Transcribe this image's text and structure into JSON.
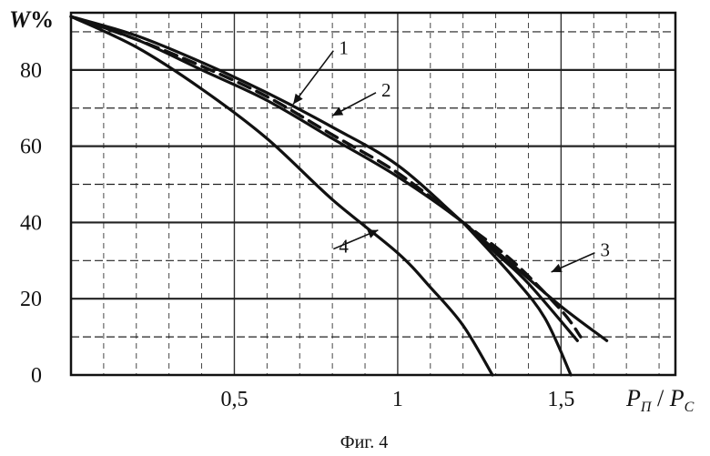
{
  "chart_data": {
    "type": "line",
    "caption": "Фиг. 4",
    "ylabel_main": "W",
    "ylabel_unit": "%",
    "xlabel_p1": "P",
    "xlabel_sub1": "П",
    "xlabel_sep": " / ",
    "xlabel_p2": "P",
    "xlabel_sub2": "С",
    "xlim": [
      0,
      1.85
    ],
    "ylim": [
      0,
      95
    ],
    "grid": true,
    "x_ticks": [
      {
        "value": 0.5,
        "label": "0,5"
      },
      {
        "value": 1.0,
        "label": "1"
      },
      {
        "value": 1.5,
        "label": "1,5"
      }
    ],
    "y_ticks": [
      {
        "value": 0,
        "label": "0"
      },
      {
        "value": 20,
        "label": "20"
      },
      {
        "value": 40,
        "label": "40"
      },
      {
        "value": 60,
        "label": "60"
      },
      {
        "value": 80,
        "label": "80"
      }
    ],
    "series": [
      {
        "name": "1",
        "style": "solid",
        "points": [
          [
            0,
            94
          ],
          [
            0.2,
            89
          ],
          [
            0.4,
            82
          ],
          [
            0.6,
            74
          ],
          [
            0.8,
            65
          ],
          [
            1.0,
            55
          ],
          [
            1.2,
            40
          ],
          [
            1.35,
            29
          ],
          [
            1.5,
            18
          ],
          [
            1.64,
            9
          ]
        ],
        "label_at": {
          "x": 0.82,
          "y": 86
        },
        "arrow_to": {
          "x": 0.68,
          "y": 71
        }
      },
      {
        "name": "2",
        "style": "solid",
        "points": [
          [
            0,
            94
          ],
          [
            0.2,
            88
          ],
          [
            0.4,
            80
          ],
          [
            0.6,
            72
          ],
          [
            0.8,
            62
          ],
          [
            1.0,
            52
          ],
          [
            1.2,
            40
          ],
          [
            1.3,
            32
          ],
          [
            1.4,
            24
          ],
          [
            1.55,
            9
          ]
        ],
        "label_at": {
          "x": 0.95,
          "y": 75
        },
        "arrow_to": {
          "x": 0.8,
          "y": 68
        }
      },
      {
        "name": "3",
        "style": "dashed",
        "points": [
          [
            0,
            94
          ],
          [
            0.2,
            88
          ],
          [
            0.4,
            81
          ],
          [
            0.6,
            73
          ],
          [
            0.8,
            63
          ],
          [
            1.0,
            53
          ],
          [
            1.2,
            40
          ],
          [
            1.35,
            30
          ],
          [
            1.5,
            17
          ],
          [
            1.56,
            10
          ]
        ],
        "label_at": {
          "x": 1.62,
          "y": 33
        },
        "arrow_to": {
          "x": 1.47,
          "y": 27
        }
      },
      {
        "name": "4",
        "style": "solid",
        "points": [
          [
            0,
            94
          ],
          [
            0.2,
            86
          ],
          [
            0.4,
            75
          ],
          [
            0.6,
            62
          ],
          [
            0.8,
            46
          ],
          [
            1.0,
            32
          ],
          [
            1.1,
            23
          ],
          [
            1.2,
            13
          ],
          [
            1.29,
            0
          ]
        ],
        "label_at": {
          "x": 0.82,
          "y": 34
        },
        "arrow_to": {
          "x": 0.94,
          "y": 38
        }
      },
      {
        "name": "",
        "style": "solid",
        "points": [
          [
            1.2,
            40
          ],
          [
            1.35,
            26
          ],
          [
            1.45,
            15
          ],
          [
            1.53,
            0
          ]
        ],
        "label_at": null,
        "arrow_to": null
      }
    ]
  }
}
